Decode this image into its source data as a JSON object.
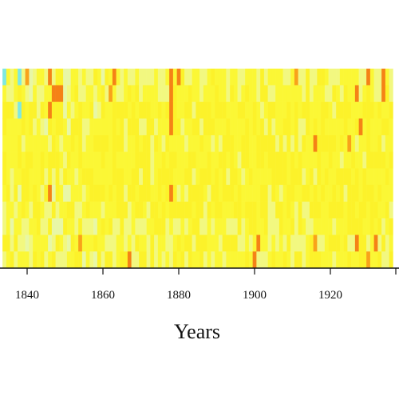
{
  "chart_data": {
    "type": "heatmap",
    "xlabel": "Years",
    "ylabel": "",
    "title": "",
    "x_range": [
      1834,
      1936
    ],
    "x_ticks": [
      1840,
      1860,
      1880,
      1900,
      1920
    ],
    "rows": 12,
    "color_scale": [
      "#7fe8e0",
      "#e8f7a6",
      "#f2f880",
      "#fbf735",
      "#fcf22a",
      "#fcd21c",
      "#f9a21a",
      "#f58216"
    ],
    "highlight_cells": [
      {
        "x": 1834,
        "row": 0,
        "value": 0.08
      },
      {
        "x": 1838,
        "row": 0,
        "value": 0.02
      },
      {
        "x": 1840,
        "row": 0,
        "value": 0.88
      },
      {
        "x": 1846,
        "row": 0,
        "value": 0.95
      },
      {
        "x": 1847,
        "row": 1,
        "value": 0.92
      },
      {
        "x": 1848,
        "row": 1,
        "value": 0.9
      },
      {
        "x": 1849,
        "row": 1,
        "value": 0.92
      },
      {
        "x": 1846,
        "row": 2,
        "value": 0.95
      },
      {
        "x": 1863,
        "row": 0,
        "value": 0.9
      },
      {
        "x": 1878,
        "row": 0,
        "value": 0.95
      },
      {
        "x": 1880,
        "row": 0,
        "value": 0.9
      },
      {
        "x": 1878,
        "row": 1,
        "value": 0.92
      },
      {
        "x": 1878,
        "row": 2,
        "value": 0.95
      },
      {
        "x": 1878,
        "row": 3,
        "value": 0.95
      },
      {
        "x": 1838,
        "row": 2,
        "value": 0.02
      },
      {
        "x": 1911,
        "row": 0,
        "value": 0.88
      },
      {
        "x": 1927,
        "row": 1,
        "value": 0.9
      },
      {
        "x": 1934,
        "row": 0,
        "value": 0.92
      },
      {
        "x": 1934,
        "row": 1,
        "value": 0.9
      },
      {
        "x": 1928,
        "row": 3,
        "value": 0.92
      },
      {
        "x": 1925,
        "row": 4,
        "value": 0.88
      },
      {
        "x": 1916,
        "row": 4,
        "value": 0.9
      },
      {
        "x": 1846,
        "row": 7,
        "value": 0.92
      },
      {
        "x": 1878,
        "row": 7,
        "value": 0.95
      },
      {
        "x": 1901,
        "row": 10,
        "value": 0.95
      },
      {
        "x": 1900,
        "row": 11,
        "value": 0.95
      },
      {
        "x": 1867,
        "row": 11,
        "value": 0.92
      },
      {
        "x": 1854,
        "row": 10,
        "value": 0.85
      },
      {
        "x": 1916,
        "row": 10,
        "value": 0.85
      },
      {
        "x": 1927,
        "row": 10,
        "value": 0.9
      },
      {
        "x": 1932,
        "row": 10,
        "value": 0.92
      },
      {
        "x": 1930,
        "row": 11,
        "value": 0.85
      },
      {
        "x": 1862,
        "row": 1,
        "value": 0.85
      },
      {
        "x": 1930,
        "row": 0,
        "value": 0.9
      }
    ]
  }
}
